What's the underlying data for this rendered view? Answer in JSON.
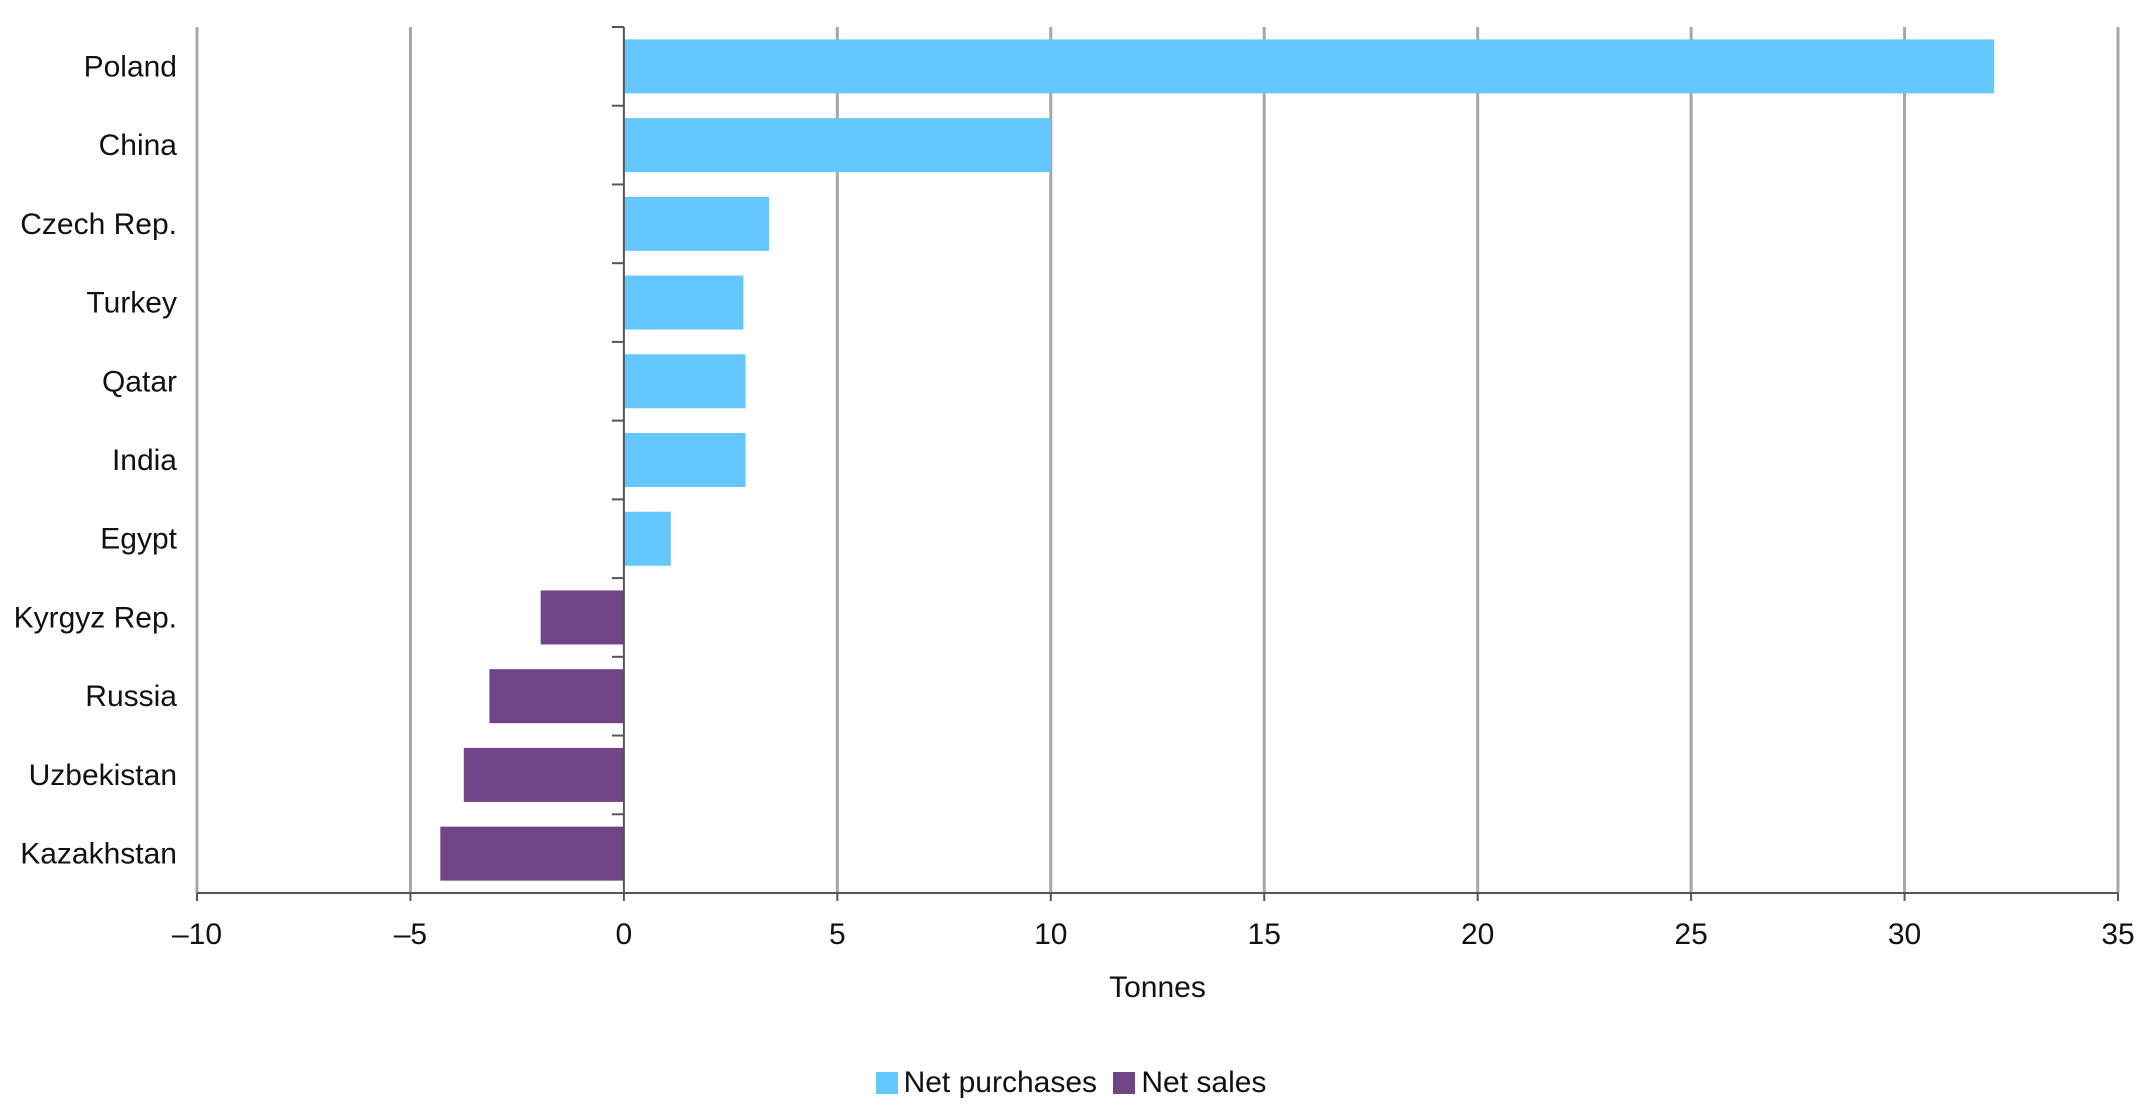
{
  "chart_data": {
    "type": "bar",
    "orientation": "horizontal",
    "categories": [
      "Poland",
      "China",
      "Czech Rep.",
      "Turkey",
      "Qatar",
      "India",
      "Egypt",
      "Kyrgyz Rep.",
      "Russia",
      "Uzbekistan",
      "Kazakhstan"
    ],
    "values": [
      32.1,
      10.0,
      3.4,
      2.8,
      2.85,
      2.85,
      1.1,
      -1.95,
      -3.15,
      -3.75,
      -4.3
    ],
    "series": [
      {
        "name": "Net purchases",
        "color": "#66c7ff"
      },
      {
        "name": "Net sales",
        "color": "#6f4587"
      }
    ],
    "xlabel": "Tonnes",
    "ylabel": "",
    "xlim": [
      -10,
      35
    ],
    "xticks": [
      -10,
      -5,
      0,
      5,
      10,
      15,
      20,
      25,
      30,
      35
    ],
    "xtick_labels": [
      "–10",
      "–5",
      "0",
      "5",
      "10",
      "15",
      "20",
      "25",
      "30",
      "35"
    ],
    "grid": "vertical",
    "legend_position": "bottom-center"
  }
}
